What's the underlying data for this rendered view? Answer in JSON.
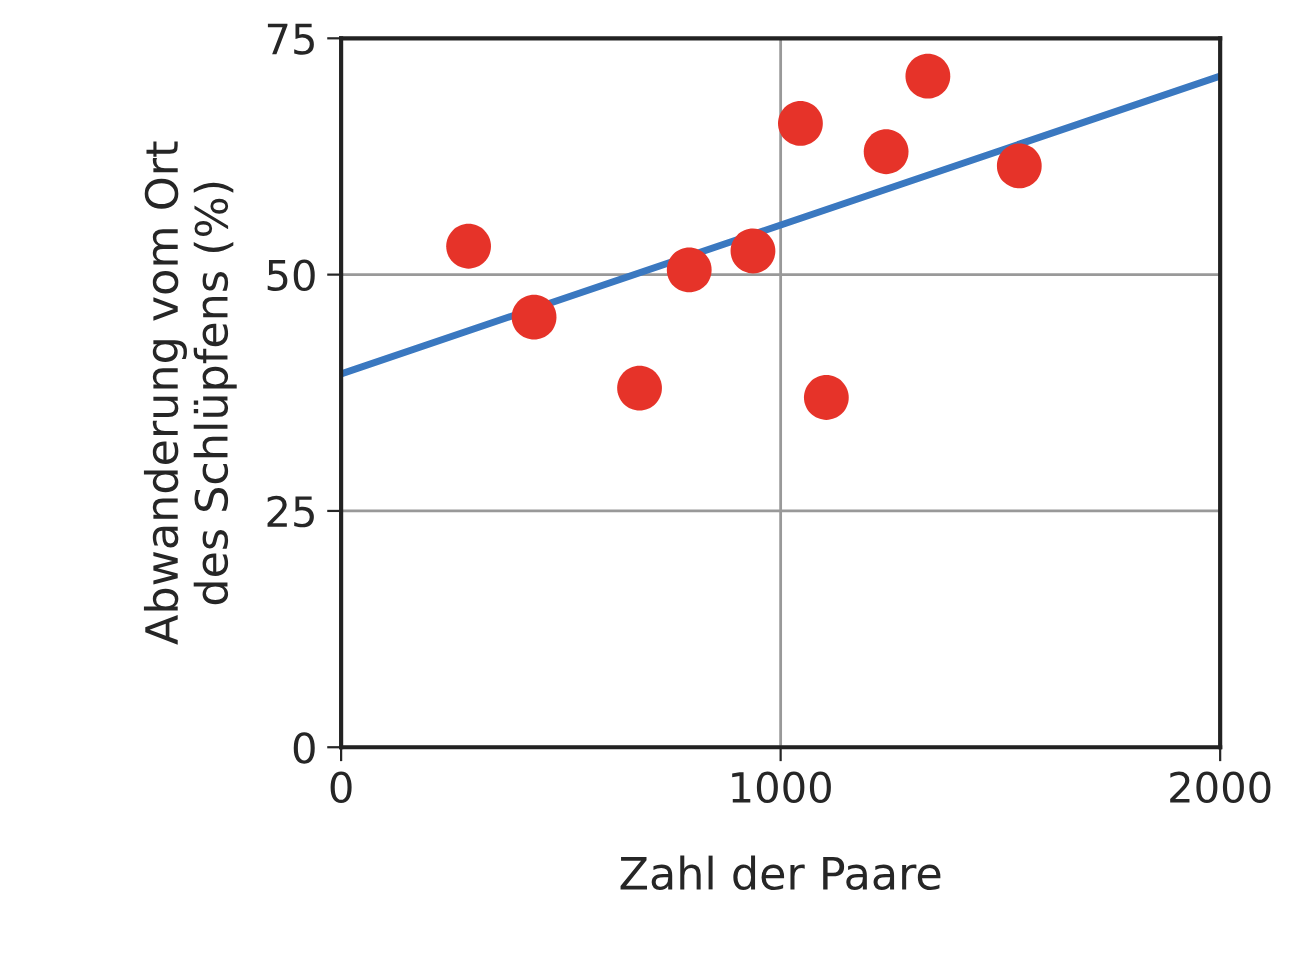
{
  "chart_data": {
    "type": "scatter",
    "xlabel": "Zahl der Paare",
    "ylabel": "Abwanderung vom Ort\ndes Schlüpfens (%)",
    "xlim": [
      0,
      2000
    ],
    "ylim": [
      0,
      75
    ],
    "xticks": [
      0,
      1000,
      2000
    ],
    "yticks": [
      0,
      25,
      50,
      75
    ],
    "grid": true,
    "series": [
      {
        "color": "#e63329",
        "marker": "circle",
        "x": [
          290,
          439,
          679,
          792,
          937,
          1045,
          1104,
          1240,
          1335,
          1543
        ],
        "values": [
          53,
          45.5,
          38,
          50.5,
          52.5,
          66,
          37,
          63,
          71,
          61.5
        ]
      },
      {
        "type": "line",
        "color": "#3a78c0",
        "x": [
          0,
          2000
        ],
        "values": [
          39.5,
          71
        ]
      }
    ]
  }
}
